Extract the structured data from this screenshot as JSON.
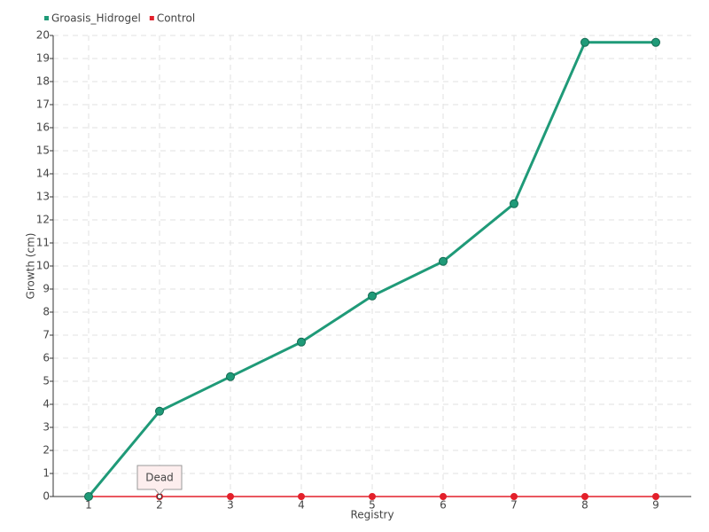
{
  "chart_data": {
    "type": "line",
    "x_label": "Registry",
    "y_label": "Growth (cm)",
    "categories": [
      "1",
      "2",
      "3",
      "4",
      "5",
      "6",
      "7",
      "8",
      "9"
    ],
    "series": [
      {
        "name": "Groasis_Hidrogel",
        "color": "#1f9a78",
        "values": [
          0,
          3.7,
          5.2,
          6.7,
          8.7,
          10.2,
          12.7,
          19.7,
          19.7
        ]
      },
      {
        "name": "Control",
        "color": "#e3202b",
        "values": [
          0,
          0,
          0,
          0,
          0,
          0,
          0,
          0,
          0
        ]
      }
    ],
    "annotation": "Dead",
    "ylim": [
      0,
      20
    ],
    "yticks": [
      0,
      1,
      2,
      3,
      4,
      5,
      6,
      7,
      8,
      9,
      10,
      11,
      12,
      13,
      14,
      15,
      16,
      17,
      18,
      19,
      20
    ],
    "grid": true
  }
}
